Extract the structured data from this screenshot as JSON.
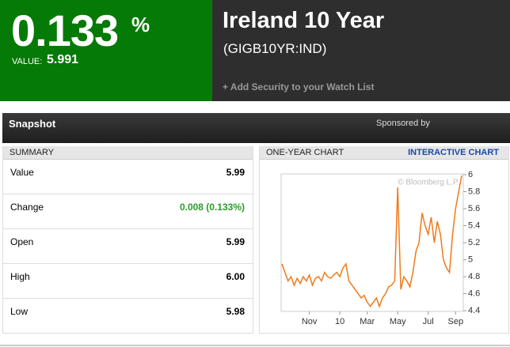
{
  "header": {
    "change_pct": "0.133",
    "pct_sign": "%",
    "value_label": "VALUE:",
    "value": "5.991",
    "title": "Ireland 10 Year",
    "ticker": "(GIGB10YR:IND)",
    "watch_link": "+ Add Security to your Watch List"
  },
  "snapshot": {
    "title": "Snapshot",
    "sponsor": "Sponsored by"
  },
  "summary": {
    "title": "SUMMARY",
    "rows": [
      [
        "Value",
        "5.99"
      ],
      [
        "Change",
        "0.008 (0.133%)"
      ],
      [
        "Open",
        "5.99"
      ],
      [
        "High",
        "6.00"
      ],
      [
        "Low",
        "5.98"
      ]
    ]
  },
  "chart_panel": {
    "title": "ONE-YEAR CHART",
    "link": "INTERACTIVE CHART",
    "watermark": "© Bloomberg L.P."
  },
  "chart_data": {
    "type": "line",
    "color": "#f07a1a",
    "values": [
      4.95,
      4.85,
      4.75,
      4.8,
      4.7,
      4.78,
      4.72,
      4.8,
      4.75,
      4.82,
      4.7,
      4.78,
      4.8,
      4.75,
      4.85,
      4.8,
      4.78,
      4.82,
      4.85,
      4.8,
      4.9,
      4.95,
      4.75,
      4.7,
      4.65,
      4.6,
      4.55,
      4.58,
      4.5,
      4.45,
      4.5,
      4.55,
      4.45,
      4.55,
      4.6,
      4.68,
      4.7,
      4.75,
      5.85,
      4.65,
      4.8,
      4.75,
      4.68,
      4.85,
      5.1,
      5.2,
      5.55,
      5.4,
      5.3,
      5.5,
      5.2,
      5.45,
      5.3,
      5.0,
      4.9,
      4.85,
      5.3,
      5.6,
      5.8,
      5.99
    ],
    "xlim": [
      0,
      59
    ],
    "xticks": [
      {
        "value": 9,
        "label": "Nov"
      },
      {
        "value": 19,
        "label": "10"
      },
      {
        "value": 28,
        "label": "Mar"
      },
      {
        "value": 38,
        "label": "May"
      },
      {
        "value": 48,
        "label": "Jul"
      },
      {
        "value": 57,
        "label": "Sep"
      }
    ],
    "ylim": [
      4.4,
      6
    ],
    "yticks": [
      4.4,
      4.6,
      4.8,
      5,
      5.2,
      5.4,
      5.6,
      5.8,
      6
    ]
  }
}
